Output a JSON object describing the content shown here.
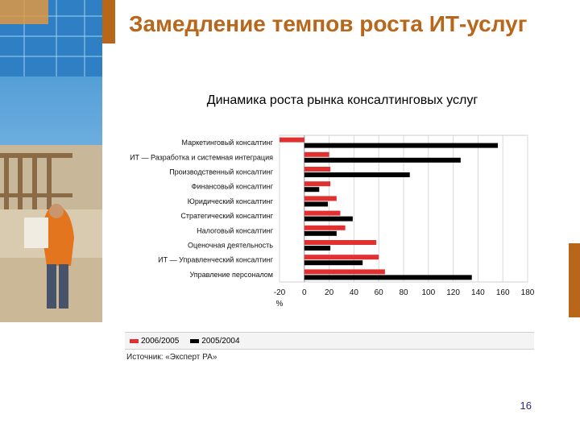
{
  "slide": {
    "title": "Замедление темпов роста ИТ-услуг",
    "subtitle": "Динамика роста рынка консалтинговых услуг",
    "page_number": "16",
    "source": "Источник: «Эксперт РА»",
    "accent_color": "#b8661a"
  },
  "chart_data": {
    "type": "bar",
    "orientation": "horizontal",
    "categories": [
      "Маркетинговый консалтинг",
      "ИТ — Разработка и системная интеграция",
      "Производственный консалтинг",
      "Финансовый консалтинг",
      "Юридический консалтинг",
      "Стратегический консалтинг",
      "Налоговый консалтинг",
      "Оценочная деятельность",
      "ИТ — Управленческий консалтинг",
      "Управление персоналом"
    ],
    "series": [
      {
        "name": "2006/2005",
        "color": "#e03030",
        "values": [
          -20,
          20,
          21,
          21,
          26,
          29,
          33,
          58,
          60,
          65
        ]
      },
      {
        "name": "2005/2004",
        "color": "#000000",
        "values": [
          156,
          126,
          85,
          12,
          19,
          39,
          26,
          21,
          47,
          135
        ]
      }
    ],
    "xlim": [
      -20,
      180
    ],
    "xticks": [
      "-20",
      "0",
      "20",
      "40",
      "60",
      "80",
      "100",
      "120",
      "140",
      "160",
      "180"
    ],
    "xunit": "%",
    "grid": true,
    "legend_position": "bottom"
  }
}
